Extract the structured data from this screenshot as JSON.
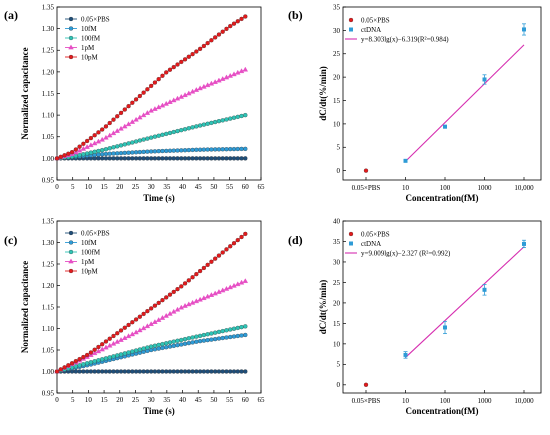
{
  "panels": [
    {
      "label": "(a)",
      "chart_data": {
        "type": "line",
        "xlabel": "Time (s)",
        "ylabel": "Normalized capacitance",
        "xlim": [
          0,
          65
        ],
        "ylim": [
          0.95,
          1.35
        ],
        "xticks": [
          0,
          5,
          10,
          15,
          20,
          25,
          30,
          35,
          40,
          45,
          50,
          55,
          60,
          65
        ],
        "yticks": [
          0.95,
          1.0,
          1.05,
          1.1,
          1.15,
          1.2,
          1.25,
          1.3,
          1.35
        ],
        "legend_position": "top-left",
        "series": [
          {
            "name": "0.05×PBS",
            "color": "#1f4e79",
            "marker": "circle",
            "points": [
              [
                0,
                1.0
              ],
              [
                60,
                1.0
              ]
            ]
          },
          {
            "name": "10fM",
            "color": "#2e9bd6",
            "marker": "circle",
            "points": [
              [
                0,
                1.0
              ],
              [
                5,
                1.003
              ],
              [
                15,
                1.01
              ],
              [
                30,
                1.016
              ],
              [
                45,
                1.02
              ],
              [
                60,
                1.022
              ]
            ]
          },
          {
            "name": "100fM",
            "color": "#2ec4b6",
            "marker": "circle",
            "points": [
              [
                0,
                1.0
              ],
              [
                5,
                1.004
              ],
              [
                15,
                1.02
              ],
              [
                30,
                1.048
              ],
              [
                45,
                1.075
              ],
              [
                60,
                1.1
              ]
            ]
          },
          {
            "name": "1pM",
            "color": "#e64fc4",
            "marker": "triangle",
            "points": [
              [
                0,
                1.0
              ],
              [
                5,
                1.01
              ],
              [
                15,
                1.045
              ],
              [
                30,
                1.11
              ],
              [
                45,
                1.16
              ],
              [
                60,
                1.205
              ]
            ]
          },
          {
            "name": "10pM",
            "color": "#e31a1c",
            "marker": "circle",
            "points": [
              [
                0,
                1.0
              ],
              [
                5,
                1.015
              ],
              [
                15,
                1.07
              ],
              [
                25,
                1.135
              ],
              [
                35,
                1.2
              ],
              [
                45,
                1.25
              ],
              [
                55,
                1.305
              ],
              [
                60,
                1.328
              ]
            ]
          }
        ]
      }
    },
    {
      "label": "(b)",
      "chart_data": {
        "type": "scatter",
        "xlabel": "Concentration(fM)",
        "ylabel": "dC/dt(%/min)",
        "categories": [
          "0.05×PBS",
          "10",
          "100",
          "1000",
          "10,000"
        ],
        "ylim": [
          -2,
          35
        ],
        "yticks": [
          0,
          5,
          10,
          15,
          20,
          25,
          30,
          35
        ],
        "legend_position": "top-left",
        "series": [
          {
            "name": "0.05×PBS",
            "color": "#e31a1c",
            "marker": "circle",
            "points": [
              {
                "x": "0.05×PBS",
                "y": 0
              }
            ]
          },
          {
            "name": "ctDNA",
            "color": "#2e9bd6",
            "marker": "square",
            "points": [
              {
                "x": "10",
                "y": 2.1,
                "err": 0.2
              },
              {
                "x": "100",
                "y": 9.4,
                "err": 0.3
              },
              {
                "x": "1000",
                "y": 19.5,
                "err": 1.0
              },
              {
                "x": "10,000",
                "y": 30.2,
                "err": 1.2
              }
            ]
          }
        ],
        "fit": {
          "name": "y=8.303lg(x)−6.319(R²=0.984)",
          "color": "#d62fb0",
          "slope": 8.303,
          "intercept": -6.319,
          "x_range": [
            10,
            10000
          ]
        }
      }
    },
    {
      "label": "(c)",
      "chart_data": {
        "type": "line",
        "xlabel": "Time (s)",
        "ylabel": "Normalized capacitance",
        "xlim": [
          0,
          65
        ],
        "ylim": [
          0.95,
          1.35
        ],
        "xticks": [
          0,
          5,
          10,
          15,
          20,
          25,
          30,
          35,
          40,
          45,
          50,
          55,
          60,
          65
        ],
        "yticks": [
          0.95,
          1.0,
          1.05,
          1.1,
          1.15,
          1.2,
          1.25,
          1.3,
          1.35
        ],
        "legend_position": "top-left",
        "series": [
          {
            "name": "0.05×PBS",
            "color": "#1f4e79",
            "marker": "circle",
            "points": [
              [
                0,
                1.0
              ],
              [
                60,
                1.0
              ]
            ]
          },
          {
            "name": "10fM",
            "color": "#2e9bd6",
            "marker": "circle",
            "points": [
              [
                0,
                1.0
              ],
              [
                10,
                1.015
              ],
              [
                30,
                1.05
              ],
              [
                45,
                1.07
              ],
              [
                60,
                1.085
              ]
            ]
          },
          {
            "name": "100fM",
            "color": "#2ec4b6",
            "marker": "circle",
            "points": [
              [
                0,
                1.0
              ],
              [
                10,
                1.02
              ],
              [
                30,
                1.058
              ],
              [
                45,
                1.082
              ],
              [
                60,
                1.105
              ]
            ]
          },
          {
            "name": "1pM",
            "color": "#e64fc4",
            "marker": "triangle",
            "points": [
              [
                0,
                1.0
              ],
              [
                10,
                1.035
              ],
              [
                25,
                1.09
              ],
              [
                40,
                1.15
              ],
              [
                60,
                1.21
              ]
            ]
          },
          {
            "name": "10pM",
            "color": "#e31a1c",
            "marker": "circle",
            "points": [
              [
                0,
                1.0
              ],
              [
                10,
                1.04
              ],
              [
                25,
                1.12
              ],
              [
                40,
                1.2
              ],
              [
                50,
                1.26
              ],
              [
                60,
                1.32
              ]
            ]
          }
        ]
      }
    },
    {
      "label": "(d)",
      "chart_data": {
        "type": "scatter",
        "xlabel": "Concentration(fM)",
        "ylabel": "dC/dt(%/min)",
        "categories": [
          "0.05×PBS",
          "10",
          "100",
          "1000",
          "10,000"
        ],
        "ylim": [
          -2,
          40
        ],
        "yticks": [
          0,
          5,
          10,
          15,
          20,
          25,
          30,
          35,
          40
        ],
        "legend_position": "top-left",
        "series": [
          {
            "name": "0.05×PBS",
            "color": "#e31a1c",
            "marker": "circle",
            "points": [
              {
                "x": "0.05×PBS",
                "y": 0
              }
            ]
          },
          {
            "name": "ctDNA",
            "color": "#2e9bd6",
            "marker": "square",
            "points": [
              {
                "x": "10",
                "y": 7.3,
                "err": 0.8
              },
              {
                "x": "100",
                "y": 14.0,
                "err": 1.5
              },
              {
                "x": "1000",
                "y": 23.2,
                "err": 1.3
              },
              {
                "x": "10,000",
                "y": 34.4,
                "err": 0.9
              }
            ]
          }
        ],
        "fit": {
          "name": "y=9.009lg(x)−2.327 (R²=0.992)",
          "color": "#d62fb0",
          "slope": 9.009,
          "intercept": -2.327,
          "x_range": [
            10,
            10000
          ]
        }
      }
    }
  ]
}
